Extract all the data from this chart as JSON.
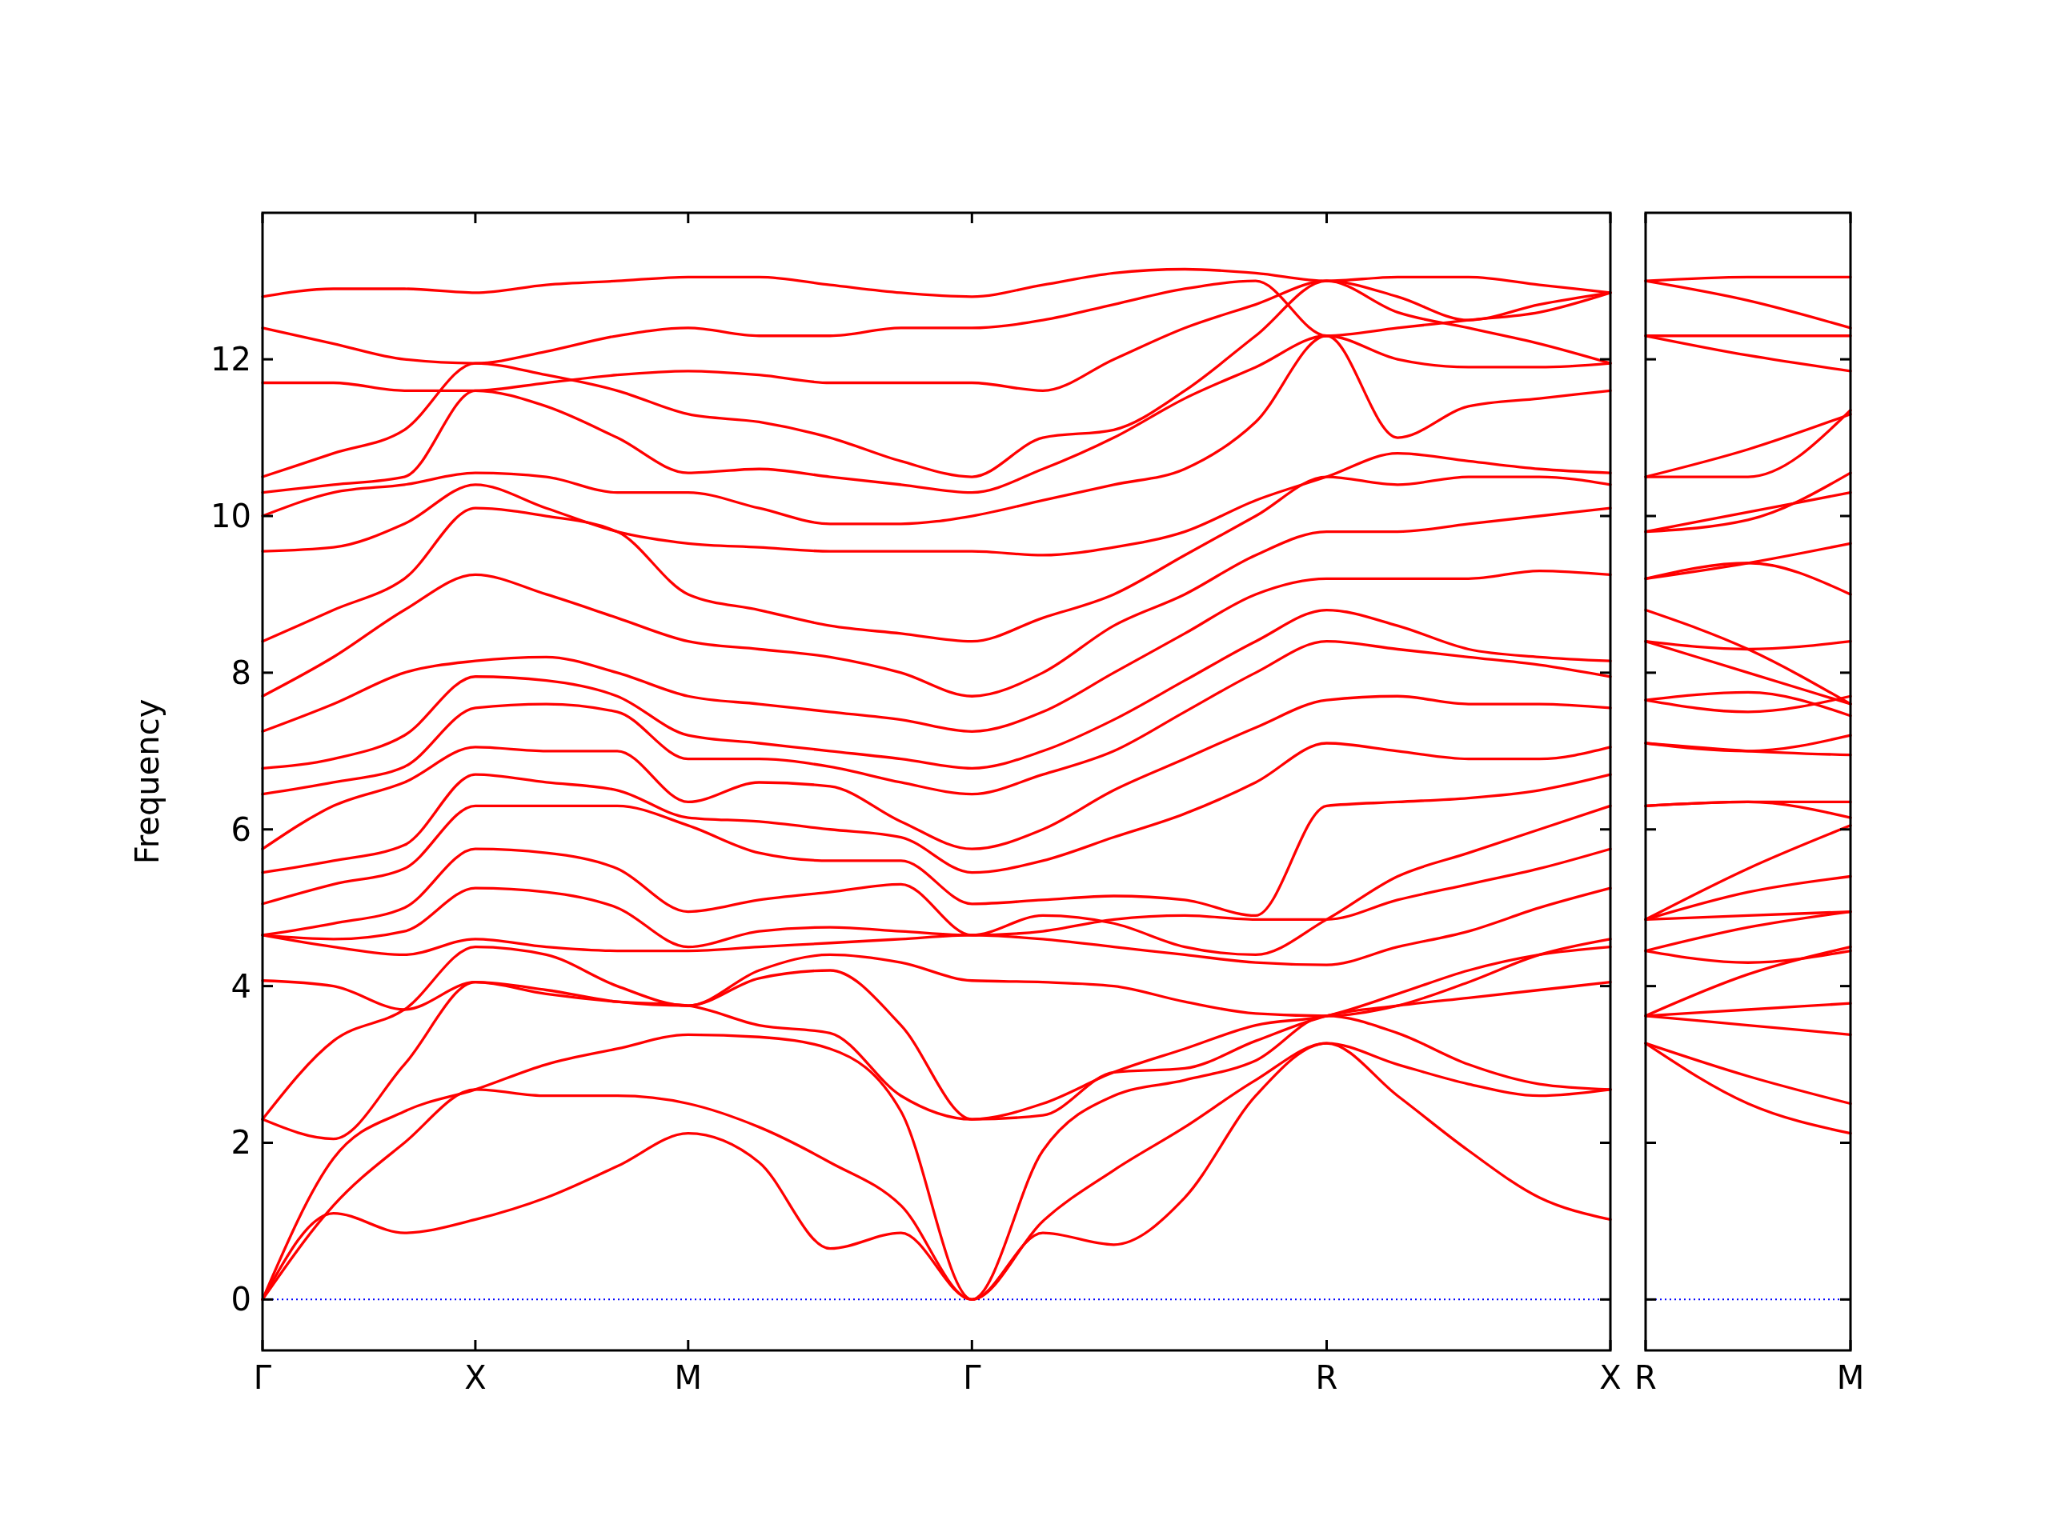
{
  "chart_data": [
    {
      "type": "line",
      "ylabel": "Frequency",
      "categories": [
        "Γ",
        null,
        null,
        "X",
        null,
        null,
        "M",
        null,
        null,
        null,
        "Γ",
        null,
        null,
        null,
        null,
        "R",
        null,
        null,
        null,
        "X"
      ],
      "ylim": [
        -0.65,
        13.87
      ],
      "yticks": [
        0,
        2,
        4,
        6,
        8,
        10,
        12
      ],
      "grid": false,
      "line_style": "solid",
      "marker": "none",
      "ref_lines": [
        {
          "axis": "y",
          "value": 0,
          "color": "#0000ff",
          "line_style": "dotted"
        }
      ],
      "series": [
        {
          "color": "#ff0000",
          "values": [
            0,
            1.1,
            0.85,
            1.02,
            1.3,
            1.7,
            2.12,
            1.75,
            0.65,
            0.85,
            0,
            0.85,
            0.7,
            1.3,
            2.6,
            3.27,
            2.6,
            1.9,
            1.3,
            1.02
          ]
        },
        {
          "color": "#ff0000",
          "values": [
            0,
            1.2,
            2.0,
            2.68,
            2.6,
            2.6,
            2.5,
            2.2,
            1.75,
            1.2,
            0,
            1.0,
            1.65,
            2.2,
            2.8,
            3.27,
            3.0,
            2.75,
            2.6,
            2.68
          ]
        },
        {
          "color": "#ff0000",
          "values": [
            0,
            1.8,
            2.4,
            2.68,
            3.0,
            3.2,
            3.38,
            3.35,
            3.2,
            2.4,
            0,
            1.9,
            2.6,
            2.8,
            3.05,
            3.62,
            3.4,
            3.0,
            2.75,
            2.68
          ]
        },
        {
          "color": "#ff0000",
          "values": [
            2.3,
            2.05,
            3.0,
            4.05,
            3.9,
            3.8,
            3.75,
            3.5,
            3.4,
            2.6,
            2.3,
            2.35,
            2.9,
            2.95,
            3.3,
            3.62,
            3.75,
            3.85,
            3.95,
            4.05
          ]
        },
        {
          "color": "#ff0000",
          "values": [
            2.3,
            3.3,
            3.7,
            4.5,
            4.4,
            4.0,
            3.75,
            4.1,
            4.2,
            3.5,
            2.3,
            2.5,
            2.9,
            3.2,
            3.5,
            3.62,
            3.9,
            4.2,
            4.4,
            4.5
          ]
        },
        {
          "color": "#ff0000",
          "values": [
            4.07,
            4.0,
            3.7,
            4.05,
            3.95,
            3.8,
            3.75,
            4.2,
            4.4,
            4.3,
            4.07,
            4.05,
            4.0,
            3.8,
            3.65,
            3.62,
            3.75,
            4.05,
            4.4,
            4.6
          ]
        },
        {
          "color": "#ff0000",
          "values": [
            4.65,
            4.5,
            4.4,
            4.6,
            4.5,
            4.45,
            4.45,
            4.5,
            4.55,
            4.6,
            4.65,
            4.6,
            4.5,
            4.4,
            4.3,
            4.27,
            4.5,
            4.7,
            5.0,
            5.25
          ]
        },
        {
          "color": "#ff0000",
          "values": [
            4.65,
            4.6,
            4.7,
            5.25,
            5.2,
            5.0,
            4.5,
            4.7,
            4.75,
            4.7,
            4.65,
            4.7,
            4.85,
            4.9,
            4.85,
            4.85,
            5.1,
            5.3,
            5.5,
            5.75
          ]
        },
        {
          "color": "#ff0000",
          "values": [
            4.65,
            4.8,
            5.0,
            5.75,
            5.7,
            5.5,
            4.95,
            5.1,
            5.2,
            5.3,
            4.65,
            4.9,
            4.8,
            4.5,
            4.4,
            4.85,
            5.4,
            5.7,
            6.0,
            6.3
          ]
        },
        {
          "color": "#ff0000",
          "values": [
            5.05,
            5.3,
            5.5,
            6.3,
            6.3,
            6.3,
            6.05,
            5.7,
            5.6,
            5.6,
            5.05,
            5.1,
            5.15,
            5.1,
            4.9,
            6.3,
            6.35,
            6.4,
            6.5,
            6.7
          ]
        },
        {
          "color": "#ff0000",
          "values": [
            5.45,
            5.6,
            5.8,
            6.7,
            6.6,
            6.5,
            6.15,
            6.1,
            6.0,
            5.9,
            5.45,
            5.6,
            5.9,
            6.2,
            6.6,
            7.1,
            7.0,
            6.9,
            6.9,
            7.05
          ]
        },
        {
          "color": "#ff0000",
          "values": [
            5.75,
            6.3,
            6.6,
            7.05,
            7.0,
            7.0,
            6.35,
            6.6,
            6.55,
            6.1,
            5.75,
            6.0,
            6.5,
            6.9,
            7.3,
            7.65,
            7.7,
            7.6,
            7.6,
            7.55
          ]
        },
        {
          "color": "#ff0000",
          "values": [
            6.45,
            6.6,
            6.8,
            7.55,
            7.6,
            7.5,
            6.9,
            6.9,
            6.8,
            6.6,
            6.45,
            6.7,
            7.0,
            7.5,
            8.0,
            8.4,
            8.3,
            8.2,
            8.1,
            7.95
          ]
        },
        {
          "color": "#ff0000",
          "values": [
            6.78,
            6.9,
            7.2,
            7.95,
            7.9,
            7.7,
            7.2,
            7.1,
            7.0,
            6.9,
            6.78,
            7.0,
            7.4,
            7.9,
            8.4,
            8.8,
            8.6,
            8.3,
            8.2,
            8.15
          ]
        },
        {
          "color": "#ff0000",
          "values": [
            7.25,
            7.6,
            8.0,
            8.15,
            8.2,
            8.0,
            7.7,
            7.6,
            7.5,
            7.4,
            7.25,
            7.5,
            8.0,
            8.5,
            9.0,
            9.2,
            9.2,
            9.2,
            9.3,
            9.25
          ]
        },
        {
          "color": "#ff0000",
          "values": [
            7.7,
            8.2,
            8.8,
            9.25,
            9.0,
            8.7,
            8.4,
            8.3,
            8.2,
            8.0,
            7.7,
            8.0,
            8.6,
            9.0,
            9.5,
            9.8,
            9.8,
            9.9,
            10.0,
            10.1
          ]
        },
        {
          "color": "#ff0000",
          "values": [
            8.4,
            8.8,
            9.2,
            10.1,
            10.0,
            9.8,
            9.0,
            8.8,
            8.6,
            8.5,
            8.4,
            8.7,
            9.0,
            9.5,
            10.0,
            10.5,
            10.4,
            10.5,
            10.5,
            10.4
          ]
        },
        {
          "color": "#ff0000",
          "values": [
            9.55,
            9.6,
            9.9,
            10.4,
            10.1,
            9.8,
            9.65,
            9.6,
            9.55,
            9.55,
            9.55,
            9.5,
            9.6,
            9.8,
            10.2,
            10.5,
            10.8,
            10.7,
            10.6,
            10.55
          ]
        },
        {
          "color": "#ff0000",
          "values": [
            10.0,
            10.3,
            10.4,
            10.55,
            10.5,
            10.3,
            10.3,
            10.1,
            9.9,
            9.9,
            10.0,
            10.2,
            10.4,
            10.6,
            11.2,
            12.3,
            11.0,
            11.4,
            11.5,
            11.6
          ]
        },
        {
          "color": "#ff0000",
          "values": [
            10.3,
            10.4,
            10.5,
            11.6,
            11.4,
            11.0,
            10.55,
            10.6,
            10.5,
            10.4,
            10.3,
            10.6,
            11.0,
            11.5,
            11.9,
            12.3,
            12.0,
            11.9,
            11.9,
            11.95
          ]
        },
        {
          "color": "#ff0000",
          "values": [
            10.5,
            10.8,
            11.1,
            11.95,
            11.8,
            11.6,
            11.3,
            11.2,
            11.0,
            10.7,
            10.5,
            11.0,
            11.1,
            11.6,
            12.3,
            13.0,
            12.8,
            12.5,
            12.7,
            12.85
          ]
        },
        {
          "color": "#ff0000",
          "values": [
            11.7,
            11.7,
            11.6,
            11.6,
            11.7,
            11.8,
            11.85,
            11.8,
            11.7,
            11.7,
            11.7,
            11.6,
            12.0,
            12.4,
            12.7,
            13.0,
            12.6,
            12.4,
            12.2,
            11.95
          ]
        },
        {
          "color": "#ff0000",
          "values": [
            12.4,
            12.2,
            12.0,
            11.95,
            12.1,
            12.3,
            12.4,
            12.3,
            12.3,
            12.4,
            12.4,
            12.5,
            12.7,
            12.9,
            13.0,
            12.3,
            12.4,
            12.5,
            12.6,
            12.85
          ]
        },
        {
          "color": "#ff0000",
          "values": [
            12.8,
            12.9,
            12.9,
            12.85,
            12.95,
            13.0,
            13.05,
            13.05,
            12.95,
            12.85,
            12.8,
            12.95,
            13.1,
            13.15,
            13.1,
            13.0,
            13.05,
            13.05,
            12.95,
            12.85
          ]
        }
      ]
    },
    {
      "type": "line",
      "categories": [
        "R",
        null,
        "M"
      ],
      "ylim": [
        -0.65,
        13.87
      ],
      "yticks": [
        0,
        2,
        4,
        6,
        8,
        10,
        12
      ],
      "tick_labels": "x",
      "grid": false,
      "line_style": "solid",
      "marker": "none",
      "ref_lines": [
        {
          "axis": "y",
          "value": 0,
          "color": "#0000ff",
          "line_style": "dotted"
        }
      ],
      "series": [
        {
          "color": "#ff0000",
          "values": [
            3.27,
            2.5,
            2.12
          ]
        },
        {
          "color": "#ff0000",
          "values": [
            3.27,
            2.85,
            2.5
          ]
        },
        {
          "color": "#ff0000",
          "values": [
            3.62,
            3.5,
            3.38
          ]
        },
        {
          "color": "#ff0000",
          "values": [
            3.62,
            3.7,
            3.78
          ]
        },
        {
          "color": "#ff0000",
          "values": [
            3.62,
            4.15,
            4.5
          ]
        },
        {
          "color": "#ff0000",
          "values": [
            4.45,
            4.3,
            4.45
          ]
        },
        {
          "color": "#ff0000",
          "values": [
            4.45,
            4.75,
            4.95
          ]
        },
        {
          "color": "#ff0000",
          "values": [
            4.85,
            4.9,
            4.95
          ]
        },
        {
          "color": "#ff0000",
          "values": [
            4.85,
            5.2,
            5.4
          ]
        },
        {
          "color": "#ff0000",
          "values": [
            4.85,
            5.5,
            6.05
          ]
        },
        {
          "color": "#ff0000",
          "values": [
            6.3,
            6.35,
            6.15
          ]
        },
        {
          "color": "#ff0000",
          "values": [
            6.3,
            6.35,
            6.35
          ]
        },
        {
          "color": "#ff0000",
          "values": [
            7.1,
            7.0,
            6.95
          ]
        },
        {
          "color": "#ff0000",
          "values": [
            7.1,
            7.0,
            7.2
          ]
        },
        {
          "color": "#ff0000",
          "values": [
            7.65,
            7.75,
            7.45
          ]
        },
        {
          "color": "#ff0000",
          "values": [
            7.65,
            7.5,
            7.7
          ]
        },
        {
          "color": "#ff0000",
          "values": [
            8.4,
            8.3,
            8.4
          ]
        },
        {
          "color": "#ff0000",
          "values": [
            8.4,
            8.0,
            7.6
          ]
        },
        {
          "color": "#ff0000",
          "values": [
            8.8,
            8.3,
            7.6
          ]
        },
        {
          "color": "#ff0000",
          "values": [
            9.2,
            9.4,
            9.0
          ]
        },
        {
          "color": "#ff0000",
          "values": [
            9.2,
            9.4,
            9.65
          ]
        },
        {
          "color": "#ff0000",
          "values": [
            9.8,
            10.05,
            10.3
          ]
        },
        {
          "color": "#ff0000",
          "values": [
            9.8,
            9.95,
            10.55
          ]
        },
        {
          "color": "#ff0000",
          "values": [
            10.5,
            10.85,
            11.3
          ]
        },
        {
          "color": "#ff0000",
          "values": [
            10.5,
            10.5,
            11.35
          ]
        },
        {
          "color": "#ff0000",
          "values": [
            12.3,
            12.05,
            11.85
          ]
        },
        {
          "color": "#ff0000",
          "values": [
            12.3,
            12.3,
            12.3
          ]
        },
        {
          "color": "#ff0000",
          "values": [
            13.0,
            12.75,
            12.4
          ]
        },
        {
          "color": "#ff0000",
          "values": [
            13.0,
            13.05,
            13.05
          ]
        }
      ]
    }
  ]
}
